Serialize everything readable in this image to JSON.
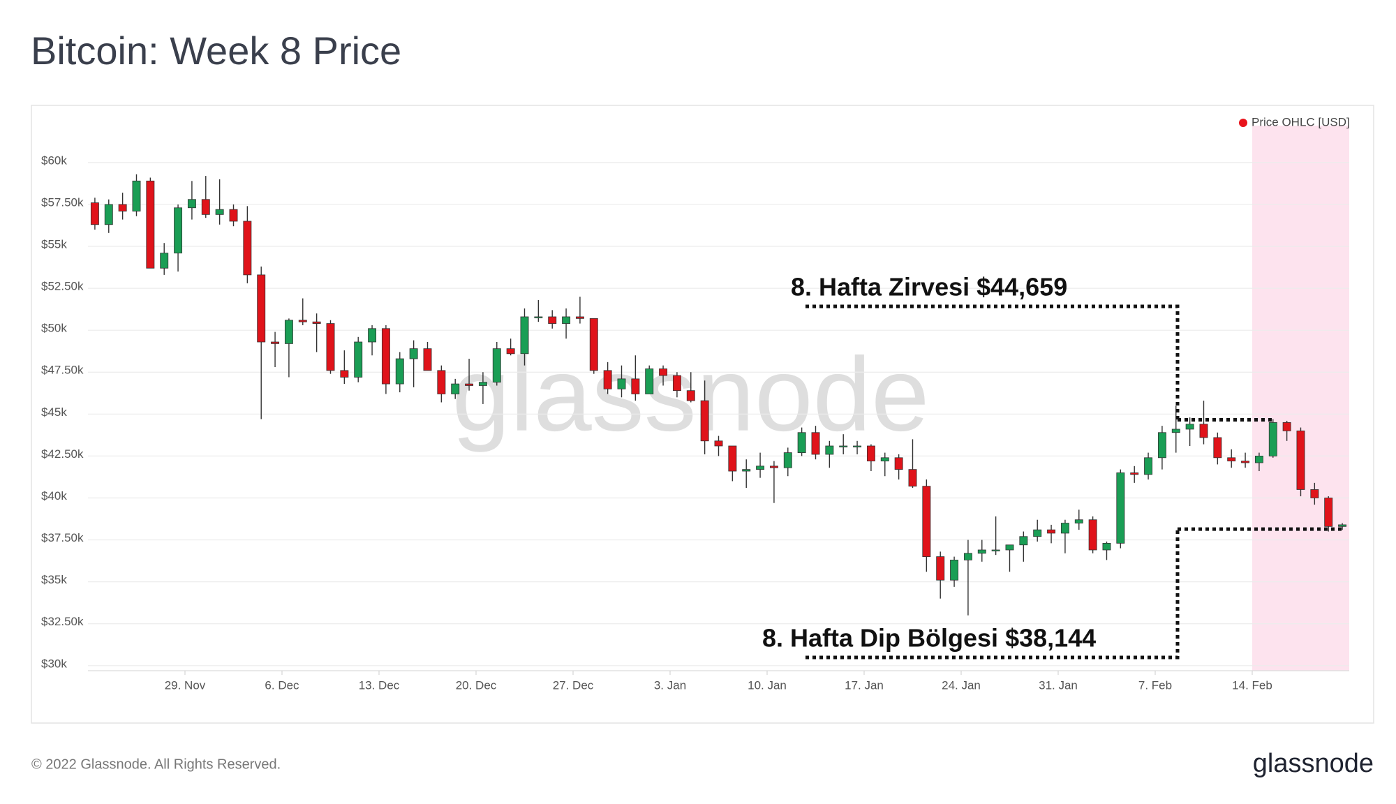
{
  "title": "Bitcoin: Week 8 Price",
  "footer": {
    "copyright": "© 2022 Glassnode. All Rights Reserved.",
    "logo": "glassnode"
  },
  "chart_data": {
    "type": "candlestick",
    "watermark": "glassnode",
    "legend": {
      "label": "Price OHLC [USD]",
      "color": "#e8141c",
      "position": "top-right"
    },
    "up_color": "#1a9e55",
    "down_color": "#e0131a",
    "highlight": {
      "from": "14. Feb",
      "color": "#fde3ee"
    },
    "grid": true,
    "categories": [
      "22. Nov",
      "23. Nov",
      "24. Nov",
      "25. Nov",
      "26. Nov",
      "27. Nov",
      "28. Nov",
      "29. Nov",
      "30. Nov",
      "1. Dec",
      "2. Dec",
      "3. Dec",
      "4. Dec",
      "5. Dec",
      "6. Dec",
      "7. Dec",
      "8. Dec",
      "9. Dec",
      "10. Dec",
      "11. Dec",
      "12. Dec",
      "13. Dec",
      "14. Dec",
      "15. Dec",
      "16. Dec",
      "17. Dec",
      "18. Dec",
      "19. Dec",
      "20. Dec",
      "21. Dec",
      "22. Dec",
      "23. Dec",
      "24. Dec",
      "25. Dec",
      "26. Dec",
      "27. Dec",
      "28. Dec",
      "29. Dec",
      "30. Dec",
      "31. Dec",
      "1. Jan",
      "2. Jan",
      "3. Jan",
      "4. Jan",
      "5. Jan",
      "6. Jan",
      "7. Jan",
      "8. Jan",
      "9. Jan",
      "10. Jan",
      "11. Jan",
      "12. Jan",
      "13. Jan",
      "14. Jan",
      "15. Jan",
      "16. Jan",
      "17. Jan",
      "18. Jan",
      "19. Jan",
      "20. Jan",
      "21. Jan",
      "22. Jan",
      "23. Jan",
      "24. Jan",
      "25. Jan",
      "26. Jan",
      "27. Jan",
      "28. Jan",
      "29. Jan",
      "30. Jan",
      "31. Jan",
      "1. Feb",
      "2. Feb",
      "3. Feb",
      "4. Feb",
      "5. Feb",
      "6. Feb",
      "7. Feb",
      "8. Feb",
      "9. Feb",
      "10. Feb",
      "11. Feb",
      "12. Feb",
      "13. Feb",
      "14. Feb",
      "15. Feb",
      "16. Feb",
      "17. Feb",
      "18. Feb",
      "19. Feb",
      "20. Feb"
    ],
    "open": [
      57600,
      56300,
      57500,
      57100,
      58900,
      53700,
      54600,
      57300,
      57800,
      56900,
      57200,
      56500,
      53300,
      49300,
      49200,
      50600,
      50500,
      50400,
      47600,
      47200,
      49300,
      50100,
      46800,
      48300,
      48900,
      47600,
      46200,
      46800,
      46700,
      46900,
      48900,
      48600,
      50800,
      50800,
      50400,
      50800,
      50700,
      47600,
      46500,
      47100,
      46200,
      47700,
      47300,
      46400,
      45800,
      43400,
      43100,
      41600,
      41700,
      41900,
      41800,
      42700,
      43900,
      42600,
      43100,
      43100,
      43100,
      42200,
      42400,
      41700,
      40700,
      36500,
      35100,
      36300,
      36700,
      36900,
      36900,
      37200,
      37700,
      38100,
      37900,
      38500,
      38700,
      36900,
      37300,
      41500,
      41400,
      42400,
      43900,
      44100,
      44400,
      43600,
      42400,
      42200,
      42100,
      42500,
      44500,
      44000,
      40500,
      40000,
      38300
    ],
    "high": [
      57900,
      57800,
      58200,
      59300,
      59100,
      55200,
      57500,
      58900,
      59200,
      59000,
      57500,
      57400,
      53800,
      49900,
      50700,
      51900,
      51000,
      50600,
      48800,
      49600,
      50300,
      50300,
      48700,
      49400,
      49300,
      47900,
      47100,
      48300,
      47500,
      49300,
      49500,
      51300,
      51800,
      51200,
      51300,
      52000,
      50700,
      48100,
      47900,
      48500,
      47900,
      47900,
      47500,
      47500,
      47000,
      43700,
      43100,
      42300,
      42700,
      42200,
      43000,
      44200,
      44300,
      43400,
      43800,
      43400,
      43200,
      42700,
      42600,
      43500,
      41100,
      36800,
      36500,
      37500,
      37500,
      38900,
      37200,
      38000,
      38700,
      38400,
      38700,
      39300,
      38900,
      37400,
      41700,
      41900,
      42700,
      44300,
      45500,
      44800,
      45800,
      43900,
      42900,
      42700,
      42700,
      44700,
      44600,
      44200,
      40900,
      40100,
      38500
    ],
    "low": [
      56000,
      55800,
      56600,
      56800,
      53700,
      53300,
      53500,
      56600,
      56700,
      56300,
      56200,
      52800,
      44700,
      47800,
      47200,
      50300,
      48700,
      47400,
      46800,
      46900,
      48500,
      46200,
      46300,
      46600,
      47600,
      45700,
      45900,
      46400,
      45600,
      46700,
      48500,
      47900,
      50500,
      50100,
      49500,
      50400,
      47400,
      46200,
      46000,
      45800,
      46200,
      46700,
      46000,
      45700,
      42600,
      42500,
      41000,
      40600,
      41200,
      39700,
      41300,
      42500,
      42300,
      41800,
      42600,
      42600,
      41600,
      41300,
      41100,
      40600,
      35600,
      34000,
      34700,
      33000,
      36200,
      36600,
      35600,
      36200,
      37400,
      37300,
      36700,
      38100,
      36700,
      36300,
      37000,
      40900,
      41100,
      41700,
      42700,
      43100,
      43200,
      42000,
      41800,
      41800,
      41600,
      42400,
      43400,
      40100,
      39600,
      38000,
      38100
    ],
    "close": [
      56300,
      57500,
      57100,
      58900,
      53700,
      54600,
      57300,
      57800,
      56900,
      57200,
      56500,
      53300,
      49300,
      49200,
      50600,
      50500,
      50400,
      47600,
      47200,
      49300,
      50100,
      46800,
      48300,
      48900,
      47600,
      46200,
      46800,
      46700,
      46900,
      48900,
      48600,
      50800,
      50800,
      50400,
      50800,
      50700,
      47600,
      46500,
      47100,
      46200,
      47700,
      47300,
      46400,
      45800,
      43400,
      43100,
      41600,
      41700,
      41900,
      41800,
      42700,
      43900,
      42600,
      43100,
      43100,
      43100,
      42200,
      42400,
      41700,
      40700,
      36500,
      35100,
      36300,
      36700,
      36900,
      36900,
      37200,
      37700,
      38100,
      37900,
      38500,
      38700,
      36900,
      37300,
      41500,
      41400,
      42400,
      43900,
      44100,
      44400,
      43600,
      42400,
      42200,
      42100,
      42500,
      44500,
      44000,
      40500,
      40000,
      38300,
      38400
    ],
    "xticks": [
      "29. Nov",
      "6. Dec",
      "13. Dec",
      "20. Dec",
      "27. Dec",
      "3. Jan",
      "10. Jan",
      "17. Jan",
      "24. Jan",
      "31. Jan",
      "7. Feb",
      "14. Feb"
    ],
    "ylim": [
      29700,
      62200
    ],
    "yticks": [
      {
        "value": 30000,
        "label": "$30k"
      },
      {
        "value": 32500,
        "label": "$32.50k"
      },
      {
        "value": 35000,
        "label": "$35k"
      },
      {
        "value": 37500,
        "label": "$37.50k"
      },
      {
        "value": 40000,
        "label": "$40k"
      },
      {
        "value": 42500,
        "label": "$42.50k"
      },
      {
        "value": 45000,
        "label": "$45k"
      },
      {
        "value": 47500,
        "label": "$47.50k"
      },
      {
        "value": 50000,
        "label": "$50k"
      },
      {
        "value": 52500,
        "label": "$52.50k"
      },
      {
        "value": 55000,
        "label": "$55k"
      },
      {
        "value": 57500,
        "label": "$57.50k"
      },
      {
        "value": 60000,
        "label": "$60k"
      }
    ],
    "annotations": [
      {
        "text": "8. Hafta Zirvesi $44,659",
        "value": 44659
      },
      {
        "text": "8. Hafta Dip Bölgesi $38,144",
        "value": 38144
      }
    ]
  }
}
